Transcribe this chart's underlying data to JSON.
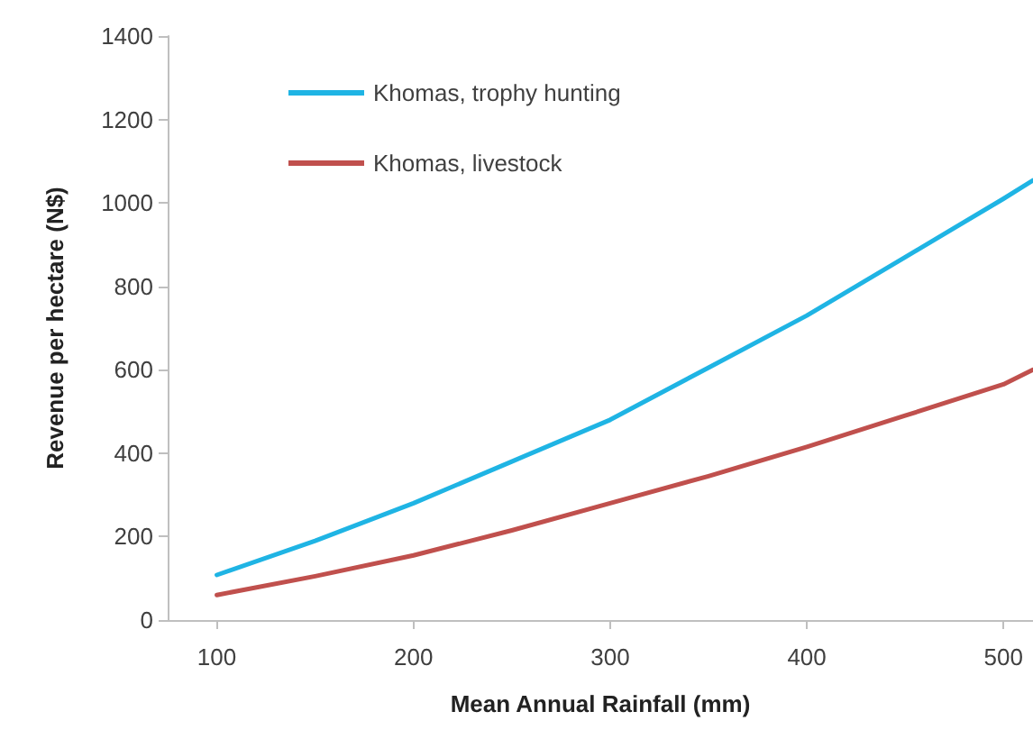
{
  "chart_data": {
    "type": "line",
    "xlabel": "Mean Annual Rainfall (mm)",
    "ylabel": "Revenue per hectare (N$)",
    "x": [
      100,
      150,
      200,
      250,
      300,
      350,
      400,
      450,
      500,
      515
    ],
    "series": [
      {
        "name": "Khomas, trophy hunting",
        "color": "#1fb4e4",
        "values": [
          108,
          190,
          280,
          380,
          480,
          605,
          730,
          870,
          1010,
          1054
        ]
      },
      {
        "name": "Khomas, livestock",
        "color": "#c0504d",
        "values": [
          60,
          105,
          155,
          215,
          280,
          345,
          415,
          490,
          565,
          600
        ]
      }
    ],
    "xlim": [
      75,
      515
    ],
    "xticks": [
      100,
      200,
      300,
      400,
      500
    ],
    "ylim": [
      0,
      1400
    ],
    "yticks": [
      0,
      200,
      400,
      600,
      800,
      1000,
      1200,
      1400
    ],
    "grid": false,
    "legend": "top left",
    "marker": "none",
    "line_style": "solid"
  }
}
